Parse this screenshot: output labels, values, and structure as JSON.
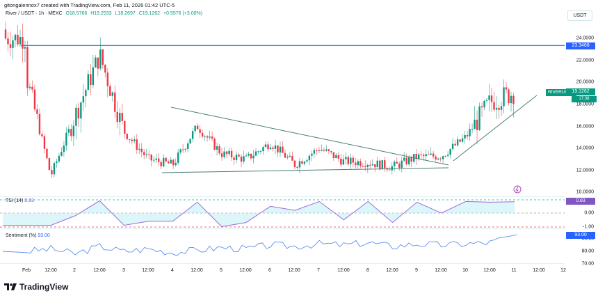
{
  "header": {
    "attribution": "gitongalennox7 created with TradingView.com, Feb 11, 2026 01:42 UTC-5"
  },
  "legend": {
    "symbol_line": "River / USDT · 1h · MEXC",
    "open": "O18.5766",
    "high": "H19.2533",
    "low": "L18.2697",
    "close": "C19.1262",
    "change": "+0.5576 (+3.00%)"
  },
  "price_axis": {
    "currency": "USDT",
    "ticks": [
      "24.0000",
      "22.0000",
      "20.0000",
      "18.0000",
      "16.0000",
      "14.0000",
      "12.0000",
      "10.0000"
    ],
    "hline_value": "23.3468",
    "last_price": "19.1262",
    "countdown": "17:38",
    "symbol_tag": "RIVERUSDT"
  },
  "tsi": {
    "label": "TSI (14)",
    "value": "0.83",
    "ticks": [
      "1.00",
      "0.00",
      "-1.00"
    ],
    "tag": "0.83"
  },
  "sentiment": {
    "label": "Sentiment (%)",
    "value": "93.00",
    "ticks": [
      "90.00",
      "80.00",
      "70.00"
    ],
    "tag": "93.00"
  },
  "time_axis": {
    "ticks": [
      "Feb",
      "12:00",
      "2",
      "12:00",
      "3",
      "12:00",
      "4",
      "12:00",
      "5",
      "12:00",
      "6",
      "12:00",
      "7",
      "12:00",
      "8",
      "12:00",
      "9",
      "12:00",
      "10",
      "12:00",
      "11",
      "12:00",
      "12"
    ]
  },
  "branding": {
    "name": "TradingView"
  },
  "colors": {
    "up": "#089981",
    "down": "#f23645",
    "hline": "#2962ff",
    "trendline": "#4a7d74",
    "tsi_line": "#9c6ade",
    "tsi_fill": "#b2ebf2",
    "sentiment_line": "#5b8def",
    "tsi_tag": "#7e57c2",
    "sent_tag": "#2962ff"
  },
  "chart_data": [
    {
      "type": "candlestick",
      "title": "River / USDT · 1h · MEXC",
      "xlabel": "",
      "ylabel": "USDT",
      "ylim": [
        9.5,
        25.5
      ],
      "x": [
        "Feb 1",
        "Feb 1 12:00",
        "Feb 2",
        "Feb 2 12:00",
        "Feb 3",
        "Feb 3 12:00",
        "Feb 4",
        "Feb 4 12:00",
        "Feb 5",
        "Feb 5 12:00",
        "Feb 6",
        "Feb 6 12:00",
        "Feb 7",
        "Feb 7 12:00",
        "Feb 8",
        "Feb 8 12:00",
        "Feb 9",
        "Feb 9 12:00",
        "Feb 10",
        "Feb 10 12:00",
        "Feb 11"
      ],
      "approx_close": [
        20.5,
        11.5,
        17.0,
        22.5,
        15.5,
        13.0,
        12.5,
        16.0,
        13.5,
        13.0,
        14.5,
        12.5,
        14.0,
        12.8,
        12.7,
        12.3,
        13.2,
        13.3,
        15.0,
        18.2,
        19.1
      ],
      "ohlc_last": {
        "open": 18.5766,
        "high": 19.2533,
        "low": 18.2697,
        "close": 19.1262,
        "change": 0.5576,
        "change_pct": 3.0
      },
      "annotations": [
        {
          "type": "hline",
          "value": 23.3468,
          "color": "#2962ff"
        },
        {
          "type": "trendline",
          "label": "descending resistance",
          "from": [
            "Feb 4",
            17.8
          ],
          "to": [
            "Feb 9 12:00",
            12.7
          ]
        },
        {
          "type": "trendline",
          "label": "horizontal support",
          "from": [
            "Feb 3 18:00",
            11.8
          ],
          "to": [
            "Feb 9 12:00",
            12.1
          ]
        },
        {
          "type": "trendline",
          "label": "ascending support",
          "from": [
            "Feb 9 18:00",
            13.0
          ],
          "to": [
            "Feb 11 06:00",
            18.7
          ]
        }
      ]
    },
    {
      "type": "line",
      "title": "TSI (14)",
      "ylim": [
        -1.0,
        1.0
      ],
      "levels": [
        1.0,
        0.0,
        -1.0
      ],
      "last_value": 0.83,
      "x": [
        "Feb 1",
        "Feb 1 12:00",
        "Feb 2",
        "Feb 2 12:00",
        "Feb 3",
        "Feb 3 12:00",
        "Feb 4",
        "Feb 4 12:00",
        "Feb 5",
        "Feb 5 12:00",
        "Feb 6",
        "Feb 6 12:00",
        "Feb 7",
        "Feb 7 12:00",
        "Feb 8",
        "Feb 8 12:00",
        "Feb 9",
        "Feb 9 12:00",
        "Feb 10",
        "Feb 10 12:00",
        "Feb 11"
      ],
      "values": [
        -0.9,
        -0.9,
        -0.2,
        0.9,
        -0.9,
        -0.6,
        -0.6,
        0.8,
        -1.0,
        -0.7,
        0.5,
        0.2,
        0.85,
        -0.5,
        0.85,
        -0.7,
        0.8,
        0.0,
        0.85,
        0.8,
        0.83
      ]
    },
    {
      "type": "line",
      "title": "Sentiment (%)",
      "ylim": [
        68,
        95
      ],
      "levels": [
        90,
        80,
        70
      ],
      "last_value": 93.0,
      "x": [
        "Feb 1",
        "Feb 1 12:00",
        "Feb 2",
        "Feb 2 12:00",
        "Feb 3",
        "Feb 3 12:00",
        "Feb 4",
        "Feb 4 12:00",
        "Feb 5",
        "Feb 5 12:00",
        "Feb 6",
        "Feb 6 12:00",
        "Feb 7",
        "Feb 7 12:00",
        "Feb 8",
        "Feb 8 12:00",
        "Feb 9",
        "Feb 9 12:00",
        "Feb 10",
        "Feb 10 12:00",
        "Feb 11"
      ],
      "values": [
        80,
        82,
        78,
        84,
        80,
        82,
        79,
        81,
        83,
        82,
        85,
        84,
        86,
        85,
        87,
        84,
        86,
        85,
        86,
        87,
        93
      ]
    }
  ]
}
